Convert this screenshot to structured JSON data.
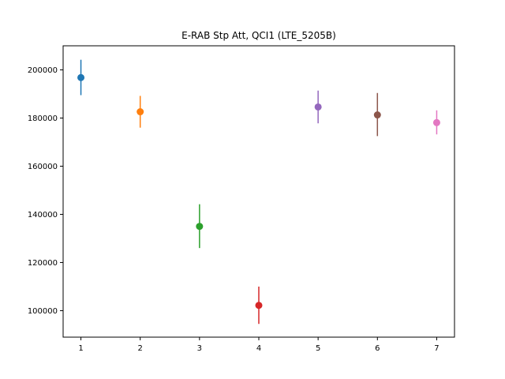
{
  "chart_data": {
    "type": "scatter",
    "title": "E-RAB Stp Att, QCI1 (LTE_5205B)",
    "xlabel": "",
    "ylabel": "",
    "xlim": [
      0.7,
      7.3
    ],
    "ylim": [
      89000,
      210000
    ],
    "x_ticks": [
      1,
      2,
      3,
      4,
      5,
      6,
      7
    ],
    "y_ticks": [
      100000,
      120000,
      140000,
      160000,
      180000,
      200000
    ],
    "grid": false,
    "points": [
      {
        "x": 1,
        "y": 196800,
        "err_low": 189500,
        "err_high": 204200,
        "color": "#1f77b4"
      },
      {
        "x": 2,
        "y": 182600,
        "err_low": 176000,
        "err_high": 189200,
        "color": "#ff7f0e"
      },
      {
        "x": 3,
        "y": 135000,
        "err_low": 126000,
        "err_high": 144200,
        "color": "#2ca02c"
      },
      {
        "x": 4,
        "y": 102200,
        "err_low": 94500,
        "err_high": 110000,
        "color": "#d62728"
      },
      {
        "x": 5,
        "y": 184600,
        "err_low": 177800,
        "err_high": 191400,
        "color": "#9467bd"
      },
      {
        "x": 6,
        "y": 181300,
        "err_low": 172500,
        "err_high": 190400,
        "color": "#8c564b"
      },
      {
        "x": 7,
        "y": 178100,
        "err_low": 173200,
        "err_high": 183200,
        "color": "#e377c2"
      }
    ]
  }
}
